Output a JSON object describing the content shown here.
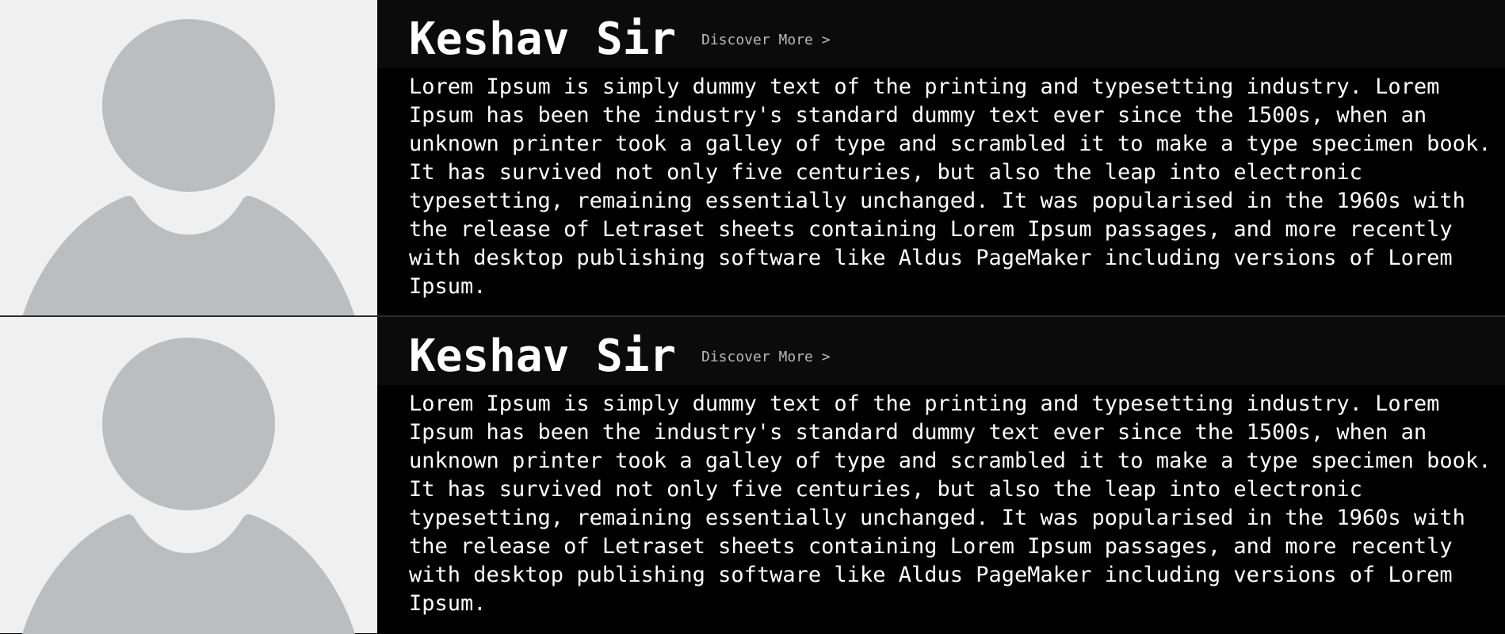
{
  "colors": {
    "background": "#000000",
    "header_bar": "#0b0b0b",
    "avatar_bg": "#f0f0f0",
    "avatar_silhouette": "#bbbdbf",
    "text": "#ffffff",
    "link": "#b8b8b8"
  },
  "cards": [
    {
      "avatar_icon": "user-silhouette-icon",
      "name": "Keshav Sir",
      "link_label": "Discover More >",
      "description": "Lorem Ipsum is simply dummy text of the printing and typesetting industry. Lorem\nIpsum has been the industry's standard dummy text ever since the 1500s, when an\nunknown printer took a galley of type and scrambled it to make a type specimen book.\nIt has survived not only five centuries, but also the leap into electronic\ntypesetting, remaining essentially unchanged. It was popularised in the 1960s with\nthe release of Letraset sheets containing Lorem Ipsum passages, and more recently\nwith desktop publishing software like Aldus PageMaker including versions of Lorem\nIpsum."
    },
    {
      "avatar_icon": "user-silhouette-icon",
      "name": "Keshav Sir",
      "link_label": "Discover More >",
      "description": "Lorem Ipsum is simply dummy text of the printing and typesetting industry. Lorem\nIpsum has been the industry's standard dummy text ever since the 1500s, when an\nunknown printer took a galley of type and scrambled it to make a type specimen book.\nIt has survived not only five centuries, but also the leap into electronic\ntypesetting, remaining essentially unchanged. It was popularised in the 1960s with\nthe release of Letraset sheets containing Lorem Ipsum passages, and more recently\nwith desktop publishing software like Aldus PageMaker including versions of Lorem\nIpsum."
    }
  ]
}
